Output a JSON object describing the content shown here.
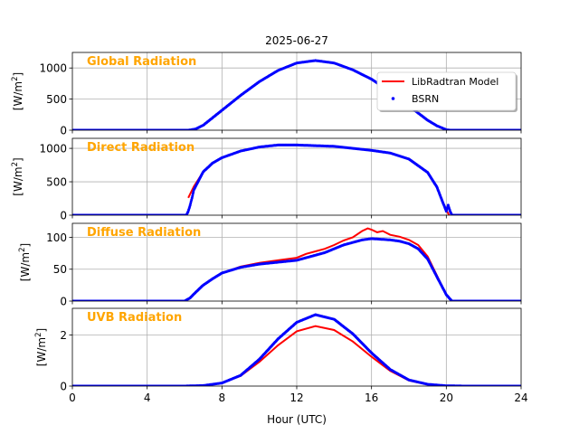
{
  "chart_data": [
    {
      "type": "line",
      "title": "2025-06-27",
      "panel_label": "Global Radiation",
      "ylabel": "[W/m$^2$]",
      "ylabel_main": "[W/m",
      "ylabel_sup": "2",
      "ylabel_end": "]",
      "xlim": [
        0,
        24
      ],
      "ylim": [
        0,
        1250
      ],
      "yticks": [
        "0",
        "500",
        "1000"
      ],
      "ytick_values": [
        0,
        500,
        1000
      ],
      "legend": {
        "placement": "upper-right",
        "entries": [
          "LibRadtran Model",
          "BSRN"
        ]
      },
      "series": [
        {
          "name": "LibRadtran Model",
          "color": "#ff0000",
          "x": [
            0,
            6.2,
            6.6,
            7,
            8,
            9,
            10,
            11,
            12,
            13,
            14,
            15,
            16,
            17,
            18,
            19,
            19.5,
            20,
            20.2,
            24
          ],
          "y": [
            0,
            0,
            20,
            80,
            320,
            560,
            780,
            960,
            1080,
            1120,
            1080,
            970,
            820,
            620,
            390,
            160,
            70,
            8,
            0,
            0
          ]
        },
        {
          "name": "BSRN",
          "color": "#0000ff",
          "x": [
            0,
            6.2,
            6.6,
            7,
            8,
            9,
            10,
            11,
            12,
            13,
            14,
            15,
            16,
            17,
            18,
            19,
            19.5,
            20,
            20.2,
            24
          ],
          "y": [
            0,
            0,
            20,
            80,
            320,
            560,
            780,
            960,
            1080,
            1120,
            1080,
            970,
            820,
            620,
            390,
            160,
            70,
            8,
            0,
            0
          ]
        }
      ]
    },
    {
      "type": "line",
      "panel_label": "Direct Radiation",
      "ylabel": "[W/m$^2$]",
      "ylabel_main": "[W/m",
      "ylabel_sup": "2",
      "ylabel_end": "]",
      "xlim": [
        0,
        24
      ],
      "ylim": [
        0,
        1150
      ],
      "yticks": [
        "0",
        "500",
        "1000"
      ],
      "ytick_values": [
        0,
        500,
        1000
      ],
      "series": [
        {
          "name": "LibRadtran Model",
          "color": "#ff0000",
          "x": [
            6.2,
            6.5,
            7,
            7.5,
            8,
            9,
            10,
            11,
            12,
            13,
            14,
            15,
            16,
            17,
            18,
            19,
            19.5,
            19.8,
            20,
            20.15
          ],
          "y": [
            260,
            430,
            650,
            780,
            860,
            960,
            1020,
            1050,
            1050,
            1040,
            1030,
            1000,
            970,
            930,
            840,
            640,
            420,
            200,
            80,
            0
          ]
        },
        {
          "name": "BSRN",
          "color": "#0000ff",
          "x": [
            0,
            6.1,
            6.2,
            6.3,
            6.4,
            6.5,
            7,
            7.5,
            8,
            9,
            10,
            11,
            12,
            13,
            14,
            15,
            16,
            17,
            18,
            19,
            19.5,
            19.8,
            20,
            20.1,
            20.2,
            20.3,
            24
          ],
          "y": [
            0,
            0,
            60,
            150,
            260,
            380,
            650,
            780,
            860,
            960,
            1020,
            1050,
            1050,
            1040,
            1030,
            1000,
            970,
            930,
            840,
            640,
            420,
            200,
            60,
            150,
            60,
            0,
            0
          ]
        }
      ]
    },
    {
      "type": "line",
      "panel_label": "Diffuse Radiation",
      "ylabel": "[W/m$^2$]",
      "ylabel_main": "[W/m",
      "ylabel_sup": "2",
      "ylabel_end": "]",
      "xlim": [
        0,
        24
      ],
      "ylim": [
        0,
        122
      ],
      "yticks": [
        "0",
        "50",
        "100"
      ],
      "ytick_values": [
        0,
        50,
        100
      ],
      "series": [
        {
          "name": "LibRadtran Model",
          "color": "#ff0000",
          "x": [
            0,
            6,
            6.3,
            6.6,
            7,
            7.5,
            8,
            9,
            10,
            11,
            12,
            12.5,
            13,
            13.5,
            14,
            14.5,
            15,
            15.5,
            15.8,
            16,
            16.3,
            16.6,
            17,
            17.5,
            18,
            18.5,
            19,
            19.5,
            20,
            20.3,
            24
          ],
          "y": [
            0,
            0,
            5,
            14,
            25,
            35,
            44,
            54,
            60,
            64,
            68,
            74,
            78,
            82,
            88,
            95,
            100,
            110,
            114,
            112,
            108,
            110,
            104,
            101,
            96,
            88,
            70,
            40,
            10,
            0,
            0
          ]
        },
        {
          "name": "BSRN",
          "color": "#0000ff",
          "x": [
            0,
            6,
            6.3,
            6.6,
            7,
            7.5,
            8,
            9,
            10,
            11,
            12,
            12.5,
            13,
            13.5,
            14,
            14.5,
            15,
            15.5,
            16,
            16.5,
            17,
            17.5,
            18,
            18.5,
            19,
            19.5,
            20,
            20.3,
            24
          ],
          "y": [
            0,
            0,
            5,
            14,
            25,
            35,
            44,
            53,
            58,
            61,
            64,
            68,
            72,
            76,
            82,
            88,
            92,
            96,
            98,
            97,
            96,
            94,
            90,
            82,
            66,
            38,
            10,
            0,
            0
          ]
        }
      ]
    },
    {
      "type": "line",
      "panel_label": "UVB Radiation",
      "ylabel": "[W/m$^2$]",
      "ylabel_main": "[W/m",
      "ylabel_sup": "2",
      "ylabel_end": "]",
      "xlabel": "Hour (UTC)",
      "xlim": [
        0,
        24
      ],
      "xticks": [
        "0",
        "4",
        "8",
        "12",
        "16",
        "20",
        "24"
      ],
      "xtick_values": [
        0,
        4,
        8,
        12,
        16,
        20,
        24
      ],
      "ylim": [
        0,
        3.05
      ],
      "yticks": [
        "0",
        "2"
      ],
      "ytick_values": [
        0,
        2
      ],
      "series": [
        {
          "name": "LibRadtran Model",
          "color": "#ff0000",
          "x": [
            0,
            6,
            7,
            8,
            9,
            10,
            11,
            12,
            13,
            14,
            15,
            16,
            17,
            18,
            19,
            20,
            21,
            24
          ],
          "y": [
            0,
            0,
            0.02,
            0.12,
            0.4,
            0.95,
            1.6,
            2.15,
            2.35,
            2.2,
            1.75,
            1.15,
            0.6,
            0.22,
            0.06,
            0.01,
            0,
            0
          ]
        },
        {
          "name": "BSRN",
          "color": "#0000ff",
          "x": [
            0,
            6,
            7,
            8,
            9,
            10,
            11,
            12,
            13,
            14,
            15,
            16,
            17,
            18,
            19,
            20,
            21,
            24
          ],
          "y": [
            0,
            0,
            0.02,
            0.12,
            0.42,
            1.05,
            1.85,
            2.5,
            2.8,
            2.62,
            2.05,
            1.3,
            0.65,
            0.24,
            0.07,
            0.01,
            0,
            0
          ]
        }
      ]
    }
  ],
  "colors": {
    "panel_label": "#ffa500",
    "model": "#ff0000",
    "bsrn": "#0000ff",
    "grid": "#b0b0b0"
  }
}
